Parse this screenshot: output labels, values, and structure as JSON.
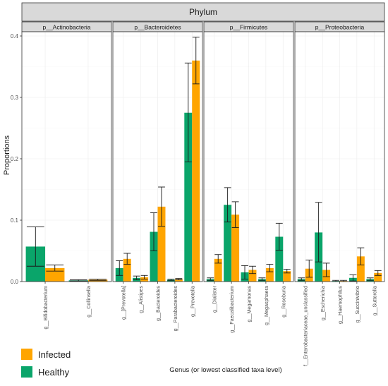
{
  "chart_data": {
    "type": "bar",
    "facet_title": "Phylum",
    "ylabel": "Proportions",
    "xlabel": "Genus (or lowest classified taxa level)",
    "ylim": [
      0,
      0.4
    ],
    "yticks": [
      "0.0",
      "0.1",
      "0.2",
      "0.3",
      "0.4"
    ],
    "ytick_values": [
      0,
      0.1,
      0.2,
      0.3,
      0.4
    ],
    "grid": true,
    "legend_position": "bottom-left",
    "legend": [
      {
        "name": "Infected",
        "color": "#FFA500"
      },
      {
        "name": "Healthy",
        "color": "#0AA56A"
      }
    ],
    "panels": [
      {
        "phylum": "p__Actinobacteria",
        "genera": [
          {
            "name": "g__Bifidobacterium",
            "healthy": 0.057,
            "healthy_err": [
              0.025,
              0.089
            ],
            "infected": 0.022,
            "infected_err": [
              0.017,
              0.027
            ]
          },
          {
            "name": "g__Collinsella",
            "healthy": 0.002,
            "healthy_err": [
              0.001,
              0.003
            ],
            "infected": 0.003,
            "infected_err": [
              0.002,
              0.004
            ]
          }
        ]
      },
      {
        "phylum": "p__Bacteroidetes",
        "genera": [
          {
            "name": "g__[Prevotella]",
            "healthy": 0.022,
            "healthy_err": [
              0.01,
              0.034
            ],
            "infected": 0.037,
            "infected_err": [
              0.028,
              0.046
            ]
          },
          {
            "name": "g__Alistipes",
            "healthy": 0.006,
            "healthy_err": [
              0.003,
              0.009
            ],
            "infected": 0.007,
            "infected_err": [
              0.004,
              0.01
            ]
          },
          {
            "name": "g__Bacteroides",
            "healthy": 0.081,
            "healthy_err": [
              0.05,
              0.112
            ],
            "infected": 0.122,
            "infected_err": [
              0.09,
              0.154
            ]
          },
          {
            "name": "g__Parabacteroides",
            "healthy": 0.003,
            "healthy_err": [
              0.002,
              0.004
            ],
            "infected": 0.004,
            "infected_err": [
              0.003,
              0.005
            ]
          },
          {
            "name": "g__Prevotella",
            "healthy": 0.275,
            "healthy_err": [
              0.195,
              0.356
            ],
            "infected": 0.36,
            "infected_err": [
              0.322,
              0.398
            ]
          }
        ]
      },
      {
        "phylum": "p__Firmicutes",
        "genera": [
          {
            "name": "g__Dialister",
            "healthy": 0.004,
            "healthy_err": [
              0.002,
              0.006
            ],
            "infected": 0.037,
            "infected_err": [
              0.03,
              0.044
            ]
          },
          {
            "name": "g__Faecalibacterium",
            "healthy": 0.125,
            "healthy_err": [
              0.097,
              0.153
            ],
            "infected": 0.109,
            "infected_err": [
              0.088,
              0.13
            ]
          },
          {
            "name": "g__Megamonas",
            "healthy": 0.015,
            "healthy_err": [
              0.004,
              0.026
            ],
            "infected": 0.019,
            "infected_err": [
              0.013,
              0.025
            ]
          },
          {
            "name": "g__Megasphaera",
            "healthy": 0.004,
            "healthy_err": [
              0.002,
              0.006
            ],
            "infected": 0.022,
            "infected_err": [
              0.016,
              0.028
            ]
          },
          {
            "name": "g__Roseburia",
            "healthy": 0.073,
            "healthy_err": [
              0.051,
              0.095
            ],
            "infected": 0.017,
            "infected_err": [
              0.014,
              0.02
            ]
          }
        ]
      },
      {
        "phylum": "p__Proteobacteria",
        "genera": [
          {
            "name": "f__Enterobacteriaceae_unclassified",
            "healthy": 0.004,
            "healthy_err": [
              0.002,
              0.006
            ],
            "infected": 0.021,
            "infected_err": [
              0.007,
              0.035
            ]
          },
          {
            "name": "g__Escherichia",
            "healthy": 0.08,
            "healthy_err": [
              0.032,
              0.129
            ],
            "infected": 0.019,
            "infected_err": [
              0.008,
              0.03
            ]
          },
          {
            "name": "g__Haemophilus",
            "healthy": 0.001,
            "healthy_err": [
              0.0,
              0.002
            ],
            "infected": 0.001,
            "infected_err": [
              0.0,
              0.002
            ]
          },
          {
            "name": "g__Succinivibrio",
            "healthy": 0.006,
            "healthy_err": [
              0.001,
              0.011
            ],
            "infected": 0.041,
            "infected_err": [
              0.027,
              0.055
            ]
          },
          {
            "name": "g__Sutterella",
            "healthy": 0.004,
            "healthy_err": [
              0.002,
              0.006
            ],
            "infected": 0.014,
            "infected_err": [
              0.01,
              0.018
            ]
          }
        ]
      }
    ]
  }
}
